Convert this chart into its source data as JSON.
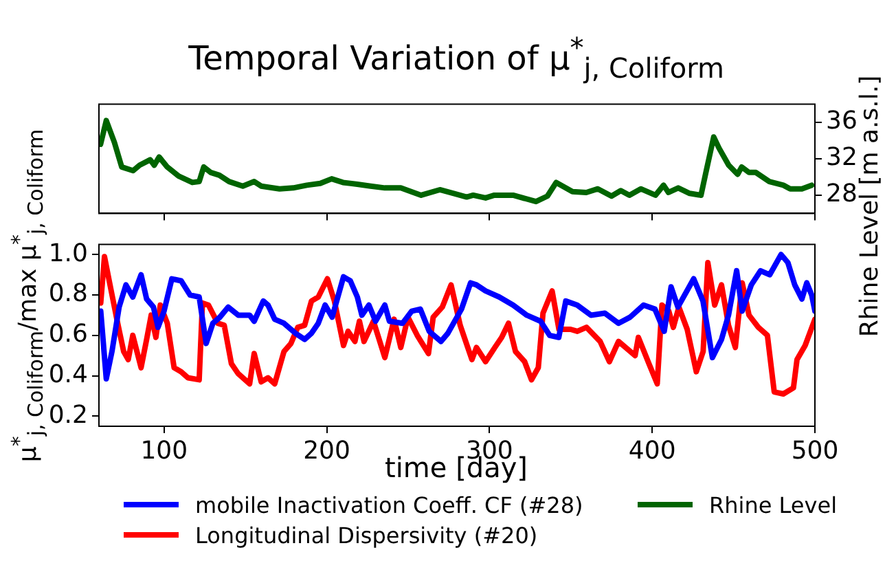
{
  "chart_data": [
    {
      "type": "line",
      "title": "Temporal Variation of μ$^{*}$$_{j, Coliform}$",
      "ylabel": "Rhine Level [m a.s.l.]",
      "xlim": [
        60,
        500
      ],
      "xticks": [
        {
          "value": 100,
          "label": null
        },
        {
          "value": 200,
          "label": null
        },
        {
          "value": 300,
          "label": null
        },
        {
          "value": 400,
          "label": null
        },
        {
          "value": 500,
          "label": null
        }
      ],
      "ylim": [
        26,
        38
      ],
      "yticks": [
        28,
        32,
        36
      ],
      "tick_labels": "y",
      "legend": "bottom",
      "series": [
        {
          "name": "Rhine Level",
          "color": "#006400",
          "x": [
            61,
            64.5,
            69.5,
            74,
            81,
            85,
            91.5,
            94,
            97,
            102,
            109,
            117.4,
            121.6,
            124.4,
            128.7,
            134,
            140,
            148.4,
            155.4,
            159.7,
            171,
            179.4,
            187.8,
            196,
            203,
            210,
            218.8,
            227,
            235.7,
            245.5,
            258,
            269.5,
            278,
            286,
            290,
            297.6,
            303,
            314.5,
            328.6,
            335.6,
            341,
            351,
            359.5,
            366.6,
            375,
            380.7,
            386,
            393,
            402,
            407,
            410,
            416,
            423,
            430,
            433,
            437.8,
            441,
            447,
            452.5,
            455,
            459.5,
            463.7,
            472,
            480.6,
            484.8,
            492,
            498
          ],
          "values": [
            33.6,
            36.2,
            33.8,
            31.1,
            30.7,
            31.3,
            31.9,
            31.3,
            32.2,
            31.1,
            30.1,
            29.4,
            29.5,
            31.1,
            30.5,
            30.2,
            29.5,
            29.0,
            29.5,
            29.0,
            28.7,
            28.8,
            29.1,
            29.3,
            29.8,
            29.4,
            29.2,
            29.0,
            28.8,
            28.8,
            28.0,
            28.6,
            28.2,
            27.8,
            28.0,
            27.7,
            28.0,
            28.0,
            27.3,
            27.9,
            29.4,
            28.4,
            28.3,
            28.7,
            27.9,
            28.5,
            28.0,
            28.7,
            28.0,
            29.1,
            28.3,
            28.8,
            28.2,
            28.0,
            30.5,
            34.4,
            33.2,
            31.3,
            30.3,
            31.1,
            30.5,
            30.5,
            29.5,
            29.1,
            28.7,
            28.7,
            29.1
          ]
        }
      ]
    },
    {
      "type": "line",
      "xlabel": "time [day]",
      "ylabel": "μ$^{*}$$_{j, Coliform}$/max μ$^{*}$$_{j, Coliform}$",
      "xlim": [
        60,
        500
      ],
      "xticks": [
        100,
        200,
        300,
        400,
        500
      ],
      "ylim": [
        0.15,
        1.05
      ],
      "yticks": [
        0.2,
        0.4,
        0.6,
        0.8,
        {
          "value": 1,
          "label": "1.0"
        }
      ],
      "legend": "bottom",
      "series": [
        {
          "name": "mobile Inactivation Coeff. CF (#28)",
          "color": "#0000ff",
          "x": [
            61.1,
            64.5,
            68,
            72.4,
            76.6,
            80.8,
            85.9,
            89.3,
            93.5,
            96.3,
            100,
            104.8,
            110.5,
            116,
            121.6,
            125.9,
            130,
            134.3,
            139.4,
            145.6,
            152.6,
            155.4,
            161,
            163.9,
            168,
            173.7,
            180.8,
            186.4,
            190.6,
            194.8,
            199,
            203.3,
            210.3,
            214.5,
            218.8,
            221.6,
            225.9,
            230,
            235.7,
            238.5,
            246.6,
            252.2,
            257.5,
            263,
            270.2,
            274.4,
            282.8,
            288.4,
            292,
            297.6,
            306,
            314.5,
            322.9,
            331.4,
            337,
            342.6,
            346.9,
            353.9,
            362.4,
            370.9,
            379.3,
            386.4,
            394.7,
            401.7,
            407.4,
            411.6,
            415.8,
            425.5,
            431.2,
            437,
            442.6,
            446.9,
            451.9,
            455.3,
            460.9,
            466.6,
            472.2,
            479.2,
            483.4,
            487.6,
            492,
            495,
            498,
            500
          ],
          "values": [
            0.72,
            0.385,
            0.52,
            0.74,
            0.85,
            0.79,
            0.9,
            0.78,
            0.74,
            0.64,
            0.72,
            0.88,
            0.87,
            0.8,
            0.79,
            0.56,
            0.66,
            0.69,
            0.74,
            0.7,
            0.7,
            0.67,
            0.77,
            0.75,
            0.68,
            0.66,
            0.61,
            0.58,
            0.61,
            0.66,
            0.75,
            0.69,
            0.89,
            0.87,
            0.79,
            0.7,
            0.75,
            0.67,
            0.75,
            0.67,
            0.66,
            0.72,
            0.73,
            0.62,
            0.57,
            0.61,
            0.73,
            0.86,
            0.85,
            0.82,
            0.79,
            0.75,
            0.7,
            0.67,
            0.6,
            0.59,
            0.77,
            0.75,
            0.7,
            0.71,
            0.66,
            0.69,
            0.75,
            0.73,
            0.62,
            0.84,
            0.74,
            0.88,
            0.77,
            0.49,
            0.58,
            0.7,
            0.92,
            0.72,
            0.85,
            0.92,
            0.9,
            1.0,
            0.96,
            0.85,
            0.78,
            0.86,
            0.8,
            0.72
          ]
        },
        {
          "name": "Longitudinal Dispersivity (#20)",
          "color": "#ff0000",
          "x": [
            61.1,
            63.4,
            66.8,
            71,
            75.2,
            78,
            80.8,
            85.9,
            89.3,
            92.1,
            95,
            97.7,
            102,
            106.2,
            110.5,
            114.7,
            121.6,
            123.6,
            127.3,
            133,
            137,
            141.4,
            145.6,
            152.6,
            155.4,
            159.7,
            163.9,
            168,
            173.7,
            178,
            182.2,
            186.4,
            190.6,
            194.8,
            200.4,
            204.7,
            210.3,
            213.1,
            217.3,
            220.1,
            222.9,
            228.7,
            235.7,
            241.4,
            245.5,
            249.9,
            255.6,
            262.5,
            265.4,
            271,
            276.4,
            282,
            289.2,
            292,
            297.6,
            303.3,
            307.5,
            311.7,
            316,
            321.6,
            325.8,
            330,
            332.9,
            338.5,
            342.7,
            349.8,
            354,
            359.6,
            368,
            373.7,
            379.3,
            389.5,
            391.5,
            398,
            403.1,
            406,
            410.2,
            413,
            416.4,
            421.5,
            427.1,
            431.3,
            434.2,
            438.4,
            442.6,
            446.9,
            451.1,
            455.3,
            459.5,
            465.2,
            470.8,
            475,
            480.6,
            486.8,
            489,
            494,
            500
          ],
          "values": [
            0.76,
            0.99,
            0.85,
            0.68,
            0.52,
            0.48,
            0.6,
            0.44,
            0.58,
            0.7,
            0.59,
            0.75,
            0.66,
            0.44,
            0.42,
            0.39,
            0.38,
            0.76,
            0.75,
            0.66,
            0.65,
            0.46,
            0.41,
            0.36,
            0.51,
            0.37,
            0.39,
            0.36,
            0.52,
            0.56,
            0.64,
            0.65,
            0.77,
            0.79,
            0.88,
            0.77,
            0.55,
            0.62,
            0.57,
            0.67,
            0.57,
            0.67,
            0.49,
            0.68,
            0.54,
            0.69,
            0.6,
            0.51,
            0.69,
            0.74,
            0.85,
            0.65,
            0.48,
            0.54,
            0.47,
            0.54,
            0.59,
            0.66,
            0.52,
            0.47,
            0.38,
            0.44,
            0.71,
            0.82,
            0.63,
            0.63,
            0.62,
            0.64,
            0.57,
            0.47,
            0.57,
            0.5,
            0.59,
            0.46,
            0.36,
            0.75,
            0.72,
            0.64,
            0.74,
            0.63,
            0.42,
            0.52,
            0.96,
            0.75,
            0.85,
            0.65,
            0.54,
            0.86,
            0.7,
            0.64,
            0.6,
            0.32,
            0.31,
            0.34,
            0.48,
            0.55,
            0.68
          ]
        }
      ]
    }
  ]
}
